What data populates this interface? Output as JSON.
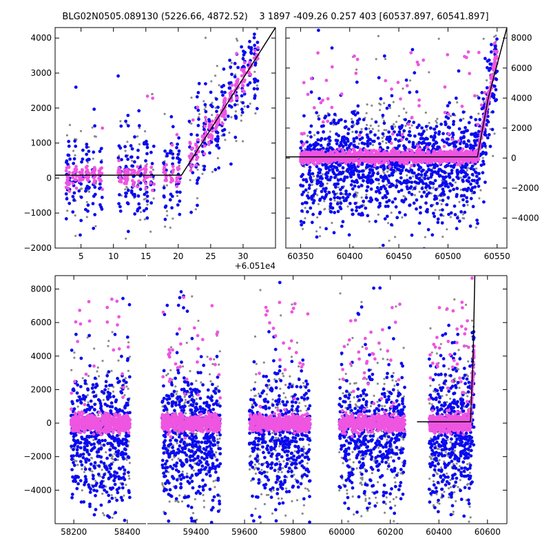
{
  "title": "BLG02N0505.089130 (5226.66, 4872.52)    3 1897 -409.26 0.257 403 [60537.897, 60541.897]",
  "colors": {
    "blue": "#0a0af0",
    "magenta": "#ee55e0",
    "gray": "#8a8a8a",
    "model": "#000000"
  },
  "chart_data": [
    {
      "id": "zoom",
      "type": "scatter",
      "title": "",
      "xlabel": "",
      "ylabel": "",
      "x_offset_label": "+6.051e4",
      "xlim": [
        1,
        35
      ],
      "ylim": [
        -2000,
        4300
      ],
      "xticks": [
        5,
        10,
        15,
        20,
        25,
        30
      ],
      "xtick_labels": [
        "5",
        "10",
        "15",
        "20",
        "25",
        "30"
      ],
      "yticks": [
        -2000,
        -1000,
        0,
        1000,
        2000,
        3000,
        4000
      ],
      "ytick_labels": [
        "−2000",
        "−1000",
        "0",
        "1000",
        "2000",
        "3000",
        "4000"
      ],
      "y_axis_side": "left",
      "model_line": {
        "x": [
          1,
          20.5,
          35
        ],
        "y": [
          80,
          80,
          4300
        ]
      },
      "point_groups": [
        {
          "color_key": "blue",
          "count": 420,
          "seed": 11
        },
        {
          "color_key": "magenta",
          "count": 360,
          "seed": 23
        },
        {
          "color_key": "gray",
          "count": 200,
          "seed": 37
        }
      ]
    },
    {
      "id": "season",
      "type": "scatter",
      "title": "",
      "xlabel": "",
      "ylabel": "",
      "xlim": [
        60335,
        60560
      ],
      "ylim": [
        -6000,
        8700
      ],
      "xticks": [
        60350,
        60400,
        60450,
        60500,
        60550
      ],
      "xtick_labels": [
        "60350",
        "60400",
        "60450",
        "60500",
        "60550"
      ],
      "yticks": [
        -4000,
        -2000,
        0,
        2000,
        4000,
        6000,
        8000
      ],
      "ytick_labels": [
        "−4000",
        "−2000",
        "0",
        "2000",
        "4000",
        "6000",
        "8000"
      ],
      "y_axis_side": "right",
      "model_line": {
        "x": [
          60335,
          60530,
          60541,
          60560
        ],
        "y": [
          80,
          80,
          4000,
          8700
        ]
      },
      "point_groups": [
        {
          "color_key": "blue",
          "count": 1300,
          "seed": 51
        },
        {
          "color_key": "magenta",
          "count": 1500,
          "seed": 67
        },
        {
          "color_key": "gray",
          "count": 450,
          "seed": 79
        }
      ]
    },
    {
      "id": "full",
      "type": "scatter",
      "title": "",
      "xlabel": "",
      "ylabel": "",
      "xlim": [
        58130,
        60680
      ],
      "ylim": [
        -6000,
        8800
      ],
      "broken_axis": true,
      "xticks": [
        58200,
        58400,
        59400,
        59600,
        59800,
        60000,
        60200,
        60400,
        60600
      ],
      "xtick_labels": [
        "58200",
        "58400",
        "59400",
        "59600",
        "59800",
        "60000",
        "60200",
        "60400",
        "60600"
      ],
      "yticks": [
        -4000,
        -2000,
        0,
        2000,
        4000,
        6000,
        8000
      ],
      "ytick_labels": [
        "−4000",
        "−2000",
        "0",
        "2000",
        "4000",
        "6000",
        "8000"
      ],
      "y_axis_side": "left",
      "model_line": {
        "x": [
          60310,
          60530,
          60541,
          60548
        ],
        "y": [
          80,
          80,
          4000,
          8800
        ]
      },
      "seasons": [
        {
          "start": 58190,
          "end": 58410
        },
        {
          "start": 59260,
          "end": 59500
        },
        {
          "start": 59620,
          "end": 59870
        },
        {
          "start": 59990,
          "end": 60260
        },
        {
          "start": 60360,
          "end": 60545
        }
      ],
      "point_groups": [
        {
          "color_key": "blue",
          "count": 2400,
          "seed": 91
        },
        {
          "color_key": "magenta",
          "count": 3200,
          "seed": 103
        },
        {
          "color_key": "gray",
          "count": 1100,
          "seed": 117
        }
      ]
    }
  ]
}
